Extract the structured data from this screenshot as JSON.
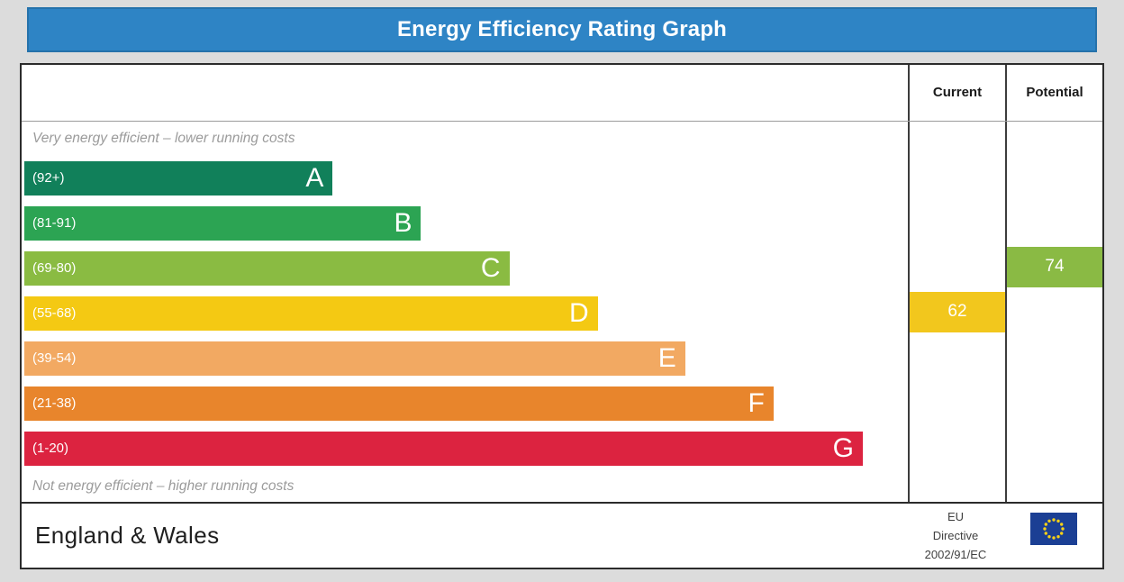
{
  "header": {
    "title": "Energy Efficiency Rating Graph",
    "bg_color": "#2e84c5"
  },
  "table": {
    "columns": {
      "current": "Current",
      "potential": "Potential"
    },
    "footer": {
      "region": "England & Wales",
      "directive_lines": [
        "EU",
        "Directive",
        "2002/91/EC"
      ]
    }
  },
  "chart_data": {
    "type": "bar",
    "title": "Energy Efficiency Rating Graph",
    "top_caption": "Very energy efficient – lower running costs",
    "bottom_caption": "Not energy efficient – higher running costs",
    "bands": [
      {
        "letter": "A",
        "range": "(92+)",
        "min": 92,
        "max": 100,
        "color": "#11805a",
        "width_pct": 34.9
      },
      {
        "letter": "B",
        "range": "(81-91)",
        "min": 81,
        "max": 91,
        "color": "#2ca453",
        "width_pct": 44.9
      },
      {
        "letter": "C",
        "range": "(69-80)",
        "min": 69,
        "max": 80,
        "color": "#8abb42",
        "width_pct": 54.9
      },
      {
        "letter": "D",
        "range": "(55-68)",
        "min": 55,
        "max": 68,
        "color": "#f4c913",
        "width_pct": 64.9
      },
      {
        "letter": "E",
        "range": "(39-54)",
        "min": 39,
        "max": 54,
        "color": "#f2a962",
        "width_pct": 74.8
      },
      {
        "letter": "F",
        "range": "(21-38)",
        "min": 21,
        "max": 38,
        "color": "#e8852c",
        "width_pct": 84.8
      },
      {
        "letter": "G",
        "range": "(1-20)",
        "min": 1,
        "max": 20,
        "color": "#dc2340",
        "width_pct": 94.9
      }
    ],
    "current": {
      "value": 62,
      "band": "D",
      "color": "#f2c71d"
    },
    "potential": {
      "value": 74,
      "band": "C",
      "color": "#8aba44"
    }
  }
}
